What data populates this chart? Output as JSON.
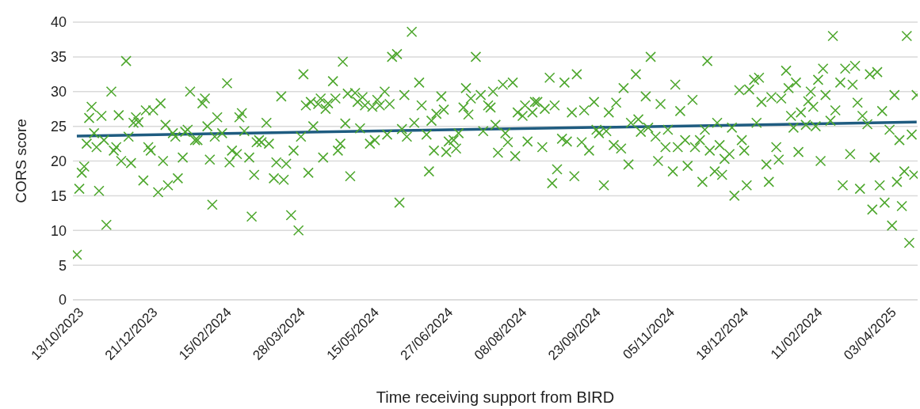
{
  "chart_data": {
    "type": "scatter",
    "xlabel": "Time receiving support from BIRD",
    "ylabel": "CORS score",
    "grid": "y",
    "categories": [
      null,
      null,
      "13/10/2023",
      null,
      null,
      null,
      null,
      null,
      null,
      null,
      null,
      null,
      null,
      null,
      null,
      null,
      null,
      null,
      null,
      null,
      null,
      null,
      null,
      null,
      null,
      null,
      null,
      null,
      null,
      null,
      null,
      null,
      "21/12/2023",
      null,
      null,
      null,
      null,
      null,
      null,
      null,
      null,
      null,
      null,
      null,
      null,
      null,
      null,
      null,
      null,
      null,
      null,
      null,
      null,
      null,
      null,
      null,
      null,
      null,
      null,
      null,
      null,
      null,
      "15/02/2024",
      null,
      null,
      null,
      null,
      null,
      null,
      null,
      null,
      null,
      null,
      null,
      null,
      null,
      null,
      null,
      null,
      null,
      null,
      null,
      null,
      null,
      null,
      null,
      null,
      null,
      null,
      null,
      null,
      null,
      "28/03/2024",
      null,
      null,
      null,
      null,
      null,
      null,
      null,
      null,
      null,
      null,
      null,
      null,
      null,
      null,
      null,
      null,
      null,
      null,
      null,
      null,
      null,
      null,
      null,
      null,
      null,
      null,
      null,
      null,
      null,
      "15/05/2024",
      null,
      null,
      null,
      null,
      null,
      null,
      null,
      null,
      null,
      null,
      null,
      null,
      null,
      null,
      null,
      null,
      null,
      null,
      null,
      null,
      null,
      null,
      null,
      null,
      null,
      null,
      null,
      null,
      null,
      "27/06/2024",
      null,
      null,
      null,
      null,
      null,
      null,
      null,
      null,
      null,
      null,
      null,
      null,
      null,
      null,
      null,
      null,
      null,
      null,
      null,
      null,
      null,
      null,
      null,
      null,
      null,
      null,
      null,
      null,
      null,
      "08/08/2024",
      null,
      null,
      null,
      null,
      null,
      null,
      null,
      null,
      null,
      null,
      null,
      null,
      null,
      null,
      null,
      null,
      null,
      null,
      null,
      null,
      null,
      null,
      null,
      null,
      null,
      null,
      null,
      null,
      null,
      "23/09/2024",
      null,
      null,
      null,
      null,
      null,
      null,
      null,
      null,
      null,
      null,
      null,
      null,
      null,
      null,
      null,
      null,
      null,
      null,
      null,
      null,
      null,
      null,
      null,
      null,
      null,
      null,
      null,
      null,
      null,
      "05/11/2024",
      null,
      null,
      null,
      null,
      null,
      null,
      null,
      null,
      null,
      null,
      null,
      null,
      null,
      null,
      null,
      null,
      null,
      null,
      null,
      null,
      null,
      null,
      null,
      null,
      null,
      null,
      null,
      null,
      null,
      "18/12/2024",
      null,
      null,
      null,
      null,
      null,
      null,
      null,
      null,
      null,
      null,
      null,
      null,
      null,
      null,
      null,
      null,
      null,
      null,
      null,
      null,
      null,
      null,
      null,
      null,
      null,
      null,
      null,
      null,
      null,
      "11/02/2024",
      null,
      null,
      null,
      null,
      null,
      null,
      null,
      null,
      null,
      null,
      null,
      null,
      null,
      null,
      null,
      null,
      null,
      null,
      null,
      null,
      null,
      null,
      null,
      null,
      null,
      null,
      null,
      null,
      null,
      "03/04/2025",
      null,
      null,
      null,
      null,
      null,
      null,
      null,
      null,
      null
    ],
    "ylim": [
      0,
      40
    ],
    "yticks": [
      0,
      5,
      10,
      15,
      20,
      25,
      30,
      35,
      40
    ],
    "series": [
      {
        "color": "#4ea72e",
        "marker": "cross",
        "values": [
          6.5,
          16,
          18.3,
          19.2,
          22.5,
          26.2,
          27.8,
          24,
          22,
          15.7,
          26.5,
          23,
          10.8,
          null,
          30,
          21.5,
          22,
          26.6,
          20,
          null,
          34.4,
          23.5,
          19.7,
          25.5,
          26.3,
          25.6,
          null,
          17.2,
          27.3,
          22,
          21.5,
          27.3,
          null,
          15.5,
          28.3,
          20,
          25.2,
          16.5,
          null,
          24,
          23.5,
          17.5,
          null,
          20.5,
          24.2,
          24.5,
          30,
          null,
          23,
          23,
          null,
          28.3,
          29,
          25,
          20.2,
          13.7,
          23.5,
          26.3,
          null,
          24,
          null,
          31.2,
          19.8,
          21.5,
          null,
          21,
          26.3,
          26.9,
          24.3,
          null,
          20.5,
          12,
          18,
          22.7,
          23,
          22.7,
          null,
          25.5,
          22.5,
          null,
          17.5,
          19.8,
          null,
          29.3,
          17.3,
          19.6,
          null,
          12.2,
          21.5,
          null,
          10,
          23.5,
          32.5,
          28,
          18.3,
          28.5,
          25,
          null,
          28.2,
          29,
          20.5,
          27.5,
          28.3,
          null,
          31.5,
          29,
          21.5,
          22.5,
          34.3,
          25.4,
          29.7,
          17.8,
          null,
          29.8,
          28.5,
          24.7,
          29.2,
          28,
          null,
          22.5,
          27.8,
          23,
          28.8,
          28,
          null,
          30,
          23.8,
          28.2,
          35,
          null,
          35.4,
          14,
          24.6,
          29.5,
          23.5,
          null,
          38.6,
          25.5,
          null,
          31.3,
          28,
          null,
          23.8,
          18.5,
          25.8,
          21.5,
          26.8,
          null,
          29.3,
          27.4,
          21.3,
          22.8,
          null,
          23,
          21.8,
          24,
          null,
          27.7,
          30.5,
          26.7,
          29,
          null,
          35,
          null,
          29.5,
          24.3,
          null,
          28,
          27.7,
          30,
          25.2,
          21.2,
          null,
          31,
          24,
          22.7,
          null,
          31.3,
          20.7,
          27,
          null,
          26.5,
          28,
          22.8,
          null,
          27,
          28.5,
          28.5,
          null,
          22,
          27.5,
          null,
          32,
          16.8,
          28,
          18.8,
          null,
          23.2,
          31.3,
          22.8,
          null,
          27,
          17.8,
          32.5,
          null,
          22.7,
          27.3,
          null,
          21.5,
          null,
          28.5,
          24.5,
          24,
          null,
          16.5,
          24.3,
          27,
          null,
          22.3,
          28.4,
          null,
          21.8,
          30.5,
          null,
          19.5,
          25.5,
          null,
          32.5,
          26,
          24.2,
          null,
          29.3,
          24.8,
          35,
          null,
          23.5,
          20,
          28.2,
          null,
          22,
          24.5,
          null,
          18.5,
          31,
          22,
          27.2,
          null,
          23,
          19.3,
          null,
          28.8,
          22,
          null,
          23,
          17,
          24.5,
          34.4,
          21.5,
          null,
          18.5,
          25.5,
          22.3,
          18,
          20.3,
          null,
          21,
          24.8,
          15,
          null,
          30.2,
          23,
          21.5,
          16.5,
          30.3,
          null,
          31.7,
          25.5,
          32,
          28.5,
          null,
          19.5,
          17,
          29.2,
          null,
          22,
          20.2,
          29,
          null,
          33,
          30.5,
          26.5,
          24.8,
          31.3,
          21.3,
          27,
          null,
          25.2,
          28.6,
          30,
          27.8,
          25,
          31.7,
          20,
          33.3,
          29.5,
          null,
          25.8,
          38,
          27.3,
          null,
          31.3,
          16.5,
          33.3,
          null,
          21,
          31,
          33.7,
          28.4,
          16,
          26.5,
          null,
          25.3,
          32.5,
          13,
          20.5,
          32.8,
          16.5,
          27.2,
          14,
          null,
          24.5,
          10.7,
          29.5,
          17,
          23,
          13.5,
          18.5,
          38,
          8.2,
          23.8,
          18,
          29.5
        ]
      },
      {
        "type": "line",
        "color": "#1f5c80",
        "values": [
          23.6,
          null,
          null,
          null,
          null,
          null,
          null,
          null,
          null,
          null,
          null,
          null,
          null,
          null,
          null,
          null,
          null,
          null,
          null,
          null,
          null,
          null,
          null,
          null,
          null,
          null,
          null,
          null,
          null,
          null,
          null,
          null,
          null,
          null,
          null,
          null,
          null,
          null,
          null,
          null,
          null,
          null,
          null,
          null,
          null,
          null,
          null,
          null,
          null,
          null,
          null,
          null,
          null,
          null,
          null,
          null,
          null,
          null,
          null,
          null,
          null,
          null,
          null,
          null,
          null,
          null,
          null,
          null,
          null,
          null,
          null,
          null,
          null,
          null,
          null,
          null,
          null,
          null,
          null,
          null,
          null,
          null,
          null,
          null,
          null,
          null,
          null,
          null,
          null,
          null,
          null,
          null,
          null,
          null,
          null,
          null,
          null,
          null,
          null,
          null,
          null,
          null,
          null,
          null,
          null,
          null,
          null,
          null,
          null,
          null,
          null,
          null,
          null,
          null,
          null,
          null,
          null,
          null,
          null,
          null,
          null,
          null,
          null,
          null,
          null,
          null,
          null,
          null,
          null,
          null,
          null,
          null,
          null,
          null,
          null,
          null,
          null,
          null,
          null,
          null,
          null,
          null,
          null,
          null,
          null,
          null,
          null,
          null,
          null,
          null,
          null,
          null,
          null,
          null,
          null,
          null,
          null,
          null,
          null,
          null,
          null,
          null,
          null,
          null,
          null,
          null,
          null,
          null,
          null,
          null,
          null,
          null,
          null,
          null,
          null,
          null,
          null,
          null,
          null,
          null,
          null,
          null,
          null,
          null,
          null,
          null,
          null,
          null,
          null,
          null,
          null,
          null,
          null,
          null,
          null,
          null,
          null,
          null,
          null,
          null,
          null,
          null,
          null,
          null,
          null,
          null,
          null,
          null,
          null,
          null,
          null,
          null,
          null,
          null,
          null,
          null,
          null,
          null,
          null,
          null,
          null,
          null,
          null,
          null,
          null,
          null,
          null,
          null,
          null,
          null,
          null,
          null,
          null,
          null,
          null,
          null,
          null,
          null,
          null,
          null,
          null,
          null,
          null,
          null,
          null,
          null,
          null,
          null,
          null,
          null,
          null,
          null,
          null,
          null,
          null,
          null,
          null,
          null,
          null,
          null,
          null,
          null,
          null,
          null,
          null,
          null,
          null,
          null,
          null,
          null,
          null,
          null,
          null,
          null,
          null,
          null,
          null,
          null,
          null,
          null,
          null,
          null,
          null,
          null,
          null,
          null,
          null,
          null,
          null,
          null,
          null,
          null,
          null,
          null,
          null,
          null,
          null,
          null,
          null,
          null,
          null,
          null,
          null,
          null,
          null,
          null,
          null,
          null,
          null,
          null,
          null,
          null,
          null,
          null,
          null,
          null,
          null,
          null,
          null,
          null,
          null,
          null,
          null,
          null,
          null,
          null,
          null,
          null,
          null,
          null,
          null,
          null,
          null,
          null,
          null,
          null,
          null,
          null,
          null,
          null,
          null,
          25.6
        ]
      }
    ]
  }
}
